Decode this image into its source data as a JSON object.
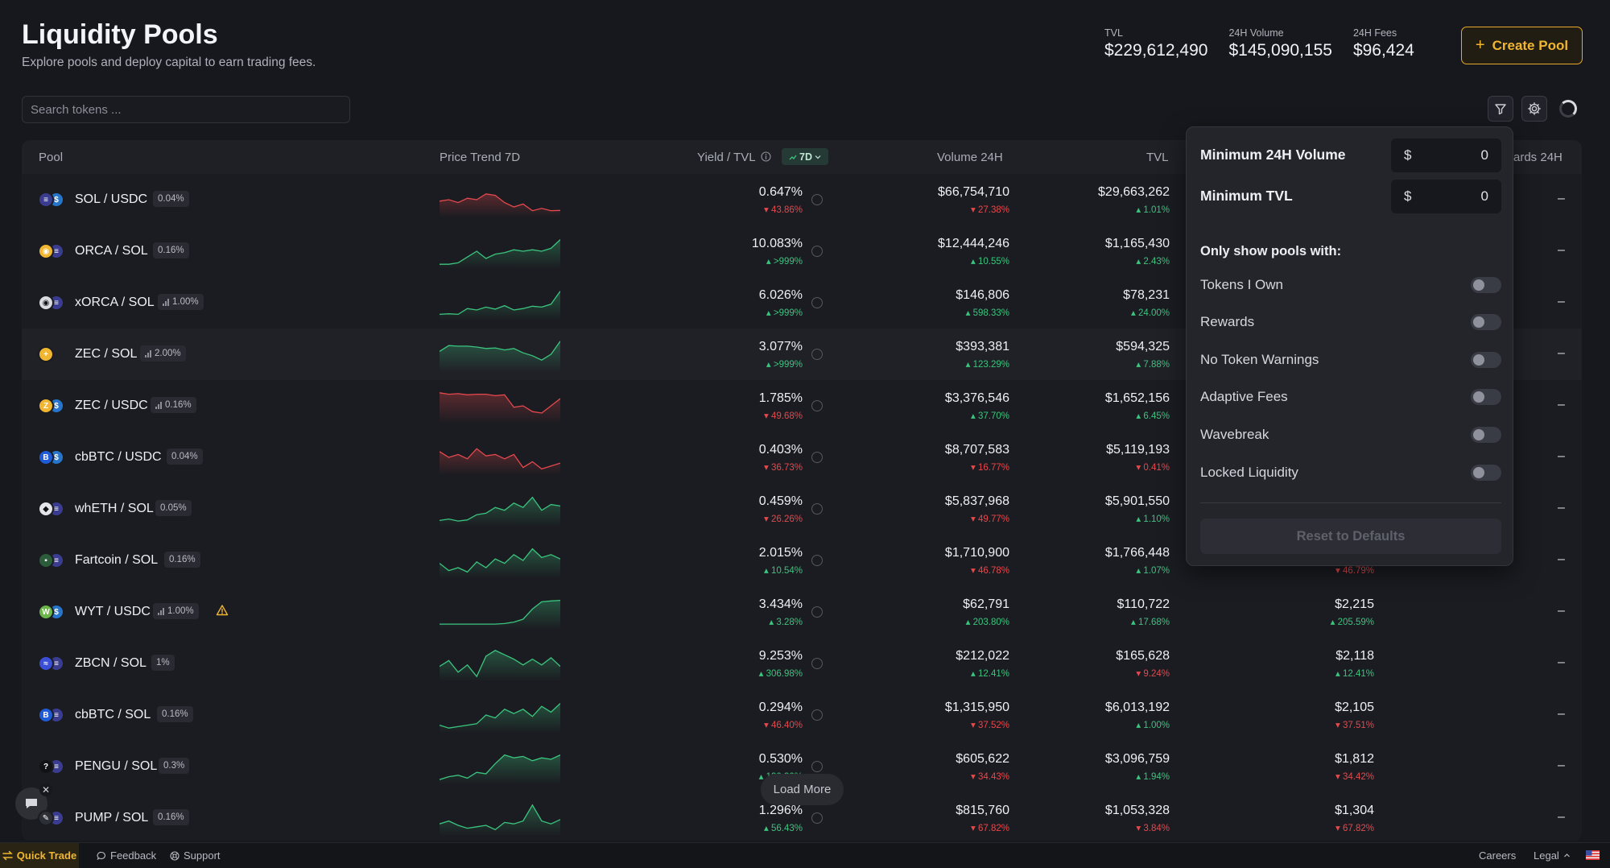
{
  "header": {
    "title": "Liquidity Pools",
    "subtitle": "Explore pools and deploy capital to earn trading fees.",
    "create_label": "Create Pool"
  },
  "stats": [
    {
      "label": "TVL",
      "value": "$229,612,490"
    },
    {
      "label": "24H Volume",
      "value": "$145,090,155"
    },
    {
      "label": "24H Fees",
      "value": "$96,424"
    }
  ],
  "search": {
    "placeholder": "Search tokens ..."
  },
  "table": {
    "columns": {
      "pool": "Pool",
      "trend": "Price Trend 7D",
      "yield": "Yield / TVL",
      "timeframe": "7D",
      "volume": "Volume 24H",
      "tvl": "TVL",
      "rewards_partial": "ards 24H"
    },
    "rows": [
      {
        "pool": "SOL / USDC",
        "fee": "0.04%",
        "bars": false,
        "yield": "0.647%",
        "yield_chg": "43.86%",
        "yield_up": false,
        "volume": "$66,754,710",
        "volume_chg": "27.38%",
        "volume_up": false,
        "tvl": "$29,663,262",
        "tvl_chg": "1.01%",
        "tvl_up": true,
        "fees": "",
        "fees_chg": "",
        "fees_up": true,
        "rewards": "–",
        "trend_up": false,
        "spark": [
          0.55,
          0.5,
          0.6,
          0.45,
          0.5,
          0.3,
          0.35,
          0.6,
          0.75,
          0.65,
          0.88,
          0.8,
          0.88,
          0.87
        ],
        "icons": [
          "#3a3d8f",
          "#2775ca"
        ],
        "glyphs": [
          "≡",
          "$"
        ]
      },
      {
        "pool": "ORCA / SOL",
        "fee": "0.16%",
        "bars": false,
        "yield": "10.083%",
        "yield_chg": ">999%",
        "yield_up": true,
        "volume": "$12,444,246",
        "volume_chg": "10.55%",
        "volume_up": true,
        "tvl": "$1,165,430",
        "tvl_chg": "2.43%",
        "tvl_up": true,
        "fees": "",
        "fees_chg": "",
        "fees_up": true,
        "rewards": "–",
        "trend_up": true,
        "spark": [
          0.95,
          0.95,
          0.9,
          0.7,
          0.5,
          0.75,
          0.6,
          0.55,
          0.45,
          0.5,
          0.45,
          0.5,
          0.4,
          0.1
        ],
        "icons": [
          "#f0b632",
          "#3a3d8f"
        ],
        "glyphs": [
          "◉",
          "≡"
        ]
      },
      {
        "pool": "xORCA / SOL",
        "fee": "1.00%",
        "bars": true,
        "yield": "6.026%",
        "yield_chg": ">999%",
        "yield_up": true,
        "volume": "$146,806",
        "volume_chg": "598.33%",
        "volume_up": true,
        "tvl": "$78,231",
        "tvl_chg": "24.00%",
        "tvl_up": true,
        "fees": "",
        "fees_chg": "",
        "fees_up": true,
        "rewards": "–",
        "trend_up": true,
        "spark": [
          0.9,
          0.88,
          0.9,
          0.7,
          0.75,
          0.65,
          0.72,
          0.6,
          0.75,
          0.7,
          0.62,
          0.65,
          0.55,
          0.1
        ],
        "icons": [
          "#d9dbe1",
          "#3a3d8f"
        ],
        "glyphs": [
          "◉",
          "≡"
        ]
      },
      {
        "pool": "ZEC / SOL",
        "fee": "2.00%",
        "bars": true,
        "yield": "3.077%",
        "yield_chg": ">999%",
        "yield_up": true,
        "volume": "$393,381",
        "volume_chg": "123.29%",
        "volume_up": true,
        "tvl": "$594,325",
        "tvl_chg": "7.88%",
        "tvl_up": true,
        "fees": "",
        "fees_chg": "",
        "fees_up": true,
        "rewards": "–",
        "trend_up": true,
        "spark": [
          0.4,
          0.2,
          0.22,
          0.22,
          0.25,
          0.3,
          0.28,
          0.35,
          0.3,
          0.45,
          0.55,
          0.7,
          0.5,
          0.05
        ],
        "icons": [
          "#f0b632"
        ],
        "glyphs": [
          "+"
        ]
      },
      {
        "pool": "ZEC / USDC",
        "fee": "0.16%",
        "bars": true,
        "yield": "1.785%",
        "yield_chg": "49.68%",
        "yield_up": false,
        "volume": "$3,376,546",
        "volume_chg": "37.70%",
        "volume_up": true,
        "tvl": "$1,652,156",
        "tvl_chg": "6.45%",
        "tvl_up": true,
        "fees": "",
        "fees_chg": "",
        "fees_up": true,
        "rewards": "–",
        "trend_up": false,
        "spark": [
          0.05,
          0.1,
          0.08,
          0.12,
          0.1,
          0.1,
          0.15,
          0.12,
          0.55,
          0.5,
          0.7,
          0.75,
          0.5,
          0.25
        ],
        "icons": [
          "#f0b632",
          "#2775ca"
        ],
        "glyphs": [
          "Z",
          "$"
        ]
      },
      {
        "pool": "cbBTC / USDC",
        "fee": "0.04%",
        "bars": false,
        "yield": "0.403%",
        "yield_chg": "36.73%",
        "yield_up": false,
        "volume": "$8,707,583",
        "volume_chg": "16.77%",
        "volume_up": false,
        "tvl": "$5,119,193",
        "tvl_chg": "0.41%",
        "tvl_up": false,
        "fees": "",
        "fees_chg": "",
        "fees_up": true,
        "rewards": "–",
        "trend_up": false,
        "spark": [
          0.3,
          0.5,
          0.4,
          0.55,
          0.2,
          0.45,
          0.4,
          0.55,
          0.4,
          0.85,
          0.65,
          0.9,
          0.8,
          0.7
        ],
        "icons": [
          "#1f5bd6",
          "#2775ca"
        ],
        "glyphs": [
          "B",
          "$"
        ]
      },
      {
        "pool": "whETH / SOL",
        "fee": "0.05%",
        "bars": false,
        "yield": "0.459%",
        "yield_chg": "26.26%",
        "yield_up": false,
        "volume": "$5,837,968",
        "volume_chg": "49.77%",
        "volume_up": false,
        "tvl": "$5,901,550",
        "tvl_chg": "1.10%",
        "tvl_up": true,
        "fees": "",
        "fees_chg": "",
        "fees_up": true,
        "rewards": "–",
        "trend_up": true,
        "spark": [
          0.9,
          0.85,
          0.92,
          0.88,
          0.7,
          0.65,
          0.45,
          0.55,
          0.3,
          0.45,
          0.1,
          0.55,
          0.35,
          0.4
        ],
        "icons": [
          "#e4e5ea",
          "#3a3d8f"
        ],
        "glyphs": [
          "◆",
          "≡"
        ]
      },
      {
        "pool": "Fartcoin / SOL",
        "fee": "0.16%",
        "bars": false,
        "yield": "2.015%",
        "yield_chg": "10.54%",
        "yield_up": true,
        "volume": "$1,710,900",
        "volume_chg": "46.78%",
        "volume_up": false,
        "tvl": "$1,766,448",
        "tvl_chg": "1.07%",
        "tvl_up": true,
        "fees": "",
        "fees_chg": "46.79%",
        "fees_up": false,
        "rewards": "–",
        "trend_up": true,
        "spark": [
          0.6,
          0.85,
          0.75,
          0.9,
          0.55,
          0.75,
          0.45,
          0.6,
          0.3,
          0.5,
          0.1,
          0.4,
          0.3,
          0.45
        ],
        "icons": [
          "#2b5d3a",
          "#3a3d8f"
        ],
        "glyphs": [
          "▪",
          "≡"
        ]
      },
      {
        "pool": "WYT / USDC",
        "fee": "1.00%",
        "bars": true,
        "warn": true,
        "yield": "3.434%",
        "yield_chg": "3.28%",
        "yield_up": true,
        "volume": "$62,791",
        "volume_chg": "203.80%",
        "volume_up": true,
        "tvl": "$110,722",
        "tvl_chg": "17.68%",
        "tvl_up": true,
        "fees": "$2,215",
        "fees_chg": "205.59%",
        "fees_up": true,
        "rewards": "–",
        "trend_up": true,
        "spark": [
          0.92,
          0.92,
          0.92,
          0.92,
          0.92,
          0.92,
          0.92,
          0.9,
          0.85,
          0.75,
          0.4,
          0.15,
          0.12,
          0.1
        ],
        "icons": [
          "#6cb54a",
          "#2775ca"
        ],
        "glyphs": [
          "W",
          "$"
        ]
      },
      {
        "pool": "ZBCN / SOL",
        "fee": "1%",
        "bars": false,
        "yield": "9.253%",
        "yield_chg": "306.98%",
        "yield_up": true,
        "volume": "$212,022",
        "volume_chg": "12.41%",
        "volume_up": true,
        "tvl": "$165,628",
        "tvl_chg": "9.24%",
        "tvl_up": false,
        "fees": "$2,118",
        "fees_chg": "12.41%",
        "fees_up": true,
        "rewards": "–",
        "trend_up": true,
        "spark": [
          0.6,
          0.4,
          0.8,
          0.55,
          0.95,
          0.25,
          0.05,
          0.2,
          0.35,
          0.55,
          0.35,
          0.55,
          0.3,
          0.6
        ],
        "icons": [
          "#3b4fd6",
          "#3a3d8f"
        ],
        "glyphs": [
          "≈",
          "≡"
        ]
      },
      {
        "pool": "cbBTC / SOL",
        "fee": "0.16%",
        "bars": false,
        "yield": "0.294%",
        "yield_chg": "46.40%",
        "yield_up": false,
        "volume": "$1,315,950",
        "volume_chg": "37.52%",
        "volume_up": false,
        "tvl": "$6,013,192",
        "tvl_chg": "1.00%",
        "tvl_up": true,
        "fees": "$2,105",
        "fees_chg": "37.51%",
        "fees_up": false,
        "rewards": "–",
        "trend_up": true,
        "spark": [
          0.85,
          0.95,
          0.9,
          0.85,
          0.8,
          0.5,
          0.6,
          0.3,
          0.45,
          0.3,
          0.55,
          0.2,
          0.4,
          0.1
        ],
        "icons": [
          "#1f5bd6",
          "#3a3d8f"
        ],
        "glyphs": [
          "B",
          "≡"
        ]
      },
      {
        "pool": "PENGU / SOL",
        "fee": "0.3%",
        "bars": false,
        "yield": "0.530%",
        "yield_chg": "130.30%",
        "yield_up": true,
        "volume": "$605,622",
        "volume_chg": "34.43%",
        "volume_up": false,
        "tvl": "$3,096,759",
        "tvl_chg": "1.94%",
        "tvl_up": true,
        "fees": "$1,812",
        "fees_chg": "34.42%",
        "fees_up": false,
        "rewards": "–",
        "trend_up": true,
        "spark": [
          0.95,
          0.85,
          0.8,
          0.9,
          0.7,
          0.75,
          0.4,
          0.1,
          0.2,
          0.15,
          0.3,
          0.2,
          0.25,
          0.1
        ],
        "icons": [
          "#111216",
          "#3a3d8f"
        ],
        "glyphs": [
          "?",
          "≡"
        ]
      },
      {
        "pool": "PUMP / SOL",
        "fee": "0.16%",
        "bars": false,
        "yield": "1.296%",
        "yield_chg": "56.43%",
        "yield_up": true,
        "volume": "$815,760",
        "volume_chg": "67.82%",
        "volume_up": false,
        "tvl": "$1,053,328",
        "tvl_chg": "3.84%",
        "tvl_up": false,
        "fees": "$1,304",
        "fees_chg": "67.82%",
        "fees_up": false,
        "rewards": "–",
        "trend_up": true,
        "spark": [
          0.7,
          0.6,
          0.75,
          0.85,
          0.8,
          0.75,
          0.9,
          0.65,
          0.7,
          0.6,
          0.05,
          0.6,
          0.7,
          0.55
        ],
        "icons": [
          "#2d2f36",
          "#3a3d8f"
        ],
        "glyphs": [
          "✎",
          "≡"
        ]
      }
    ],
    "load_more": "Load More"
  },
  "filter": {
    "min_volume_label": "Minimum 24H Volume",
    "min_volume_currency": "$",
    "min_volume_value": "0",
    "min_tvl_label": "Minimum TVL",
    "min_tvl_currency": "$",
    "min_tvl_value": "0",
    "section_label": "Only show pools with:",
    "toggles": [
      "Tokens I Own",
      "Rewards",
      "No Token Warnings",
      "Adaptive Fees",
      "Wavebreak",
      "Locked Liquidity"
    ],
    "reset_label": "Reset to Defaults"
  },
  "footer": {
    "quick_trade": "Quick Trade",
    "feedback": "Feedback",
    "support": "Support",
    "careers": "Careers",
    "legal": "Legal"
  },
  "colors": {
    "accent": "#f0b632",
    "up": "#3ac57e",
    "down": "#e5484d"
  }
}
